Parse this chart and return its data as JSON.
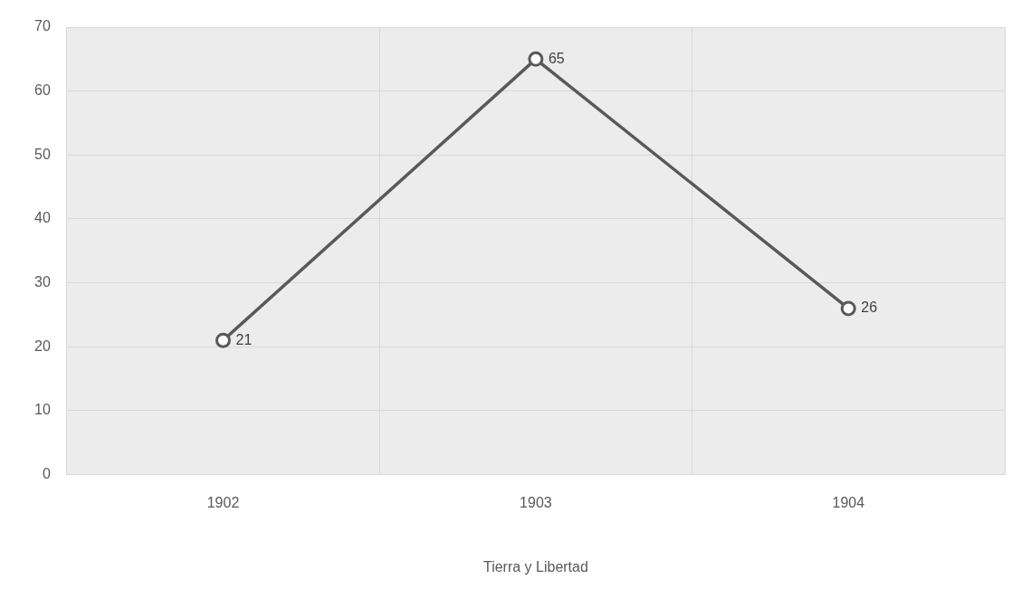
{
  "chart_data": {
    "type": "line",
    "xlabel": "Tierra y Libertad",
    "categories": [
      "1902",
      "1903",
      "1904"
    ],
    "series": [
      {
        "color": "#595959",
        "values": [
          21,
          65,
          26
        ]
      }
    ],
    "ylim": [
      0,
      70
    ],
    "yticks": [
      0,
      10,
      20,
      30,
      40,
      50,
      60,
      70
    ],
    "grid": true,
    "legend": false,
    "marker": "circle",
    "line_style": "solid",
    "data_labels": true
  }
}
